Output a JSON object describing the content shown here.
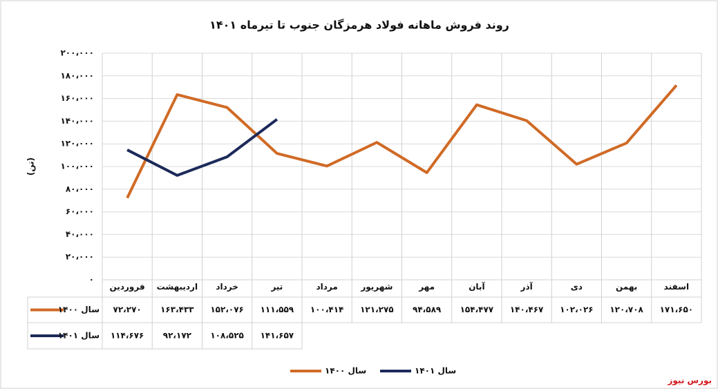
{
  "chart_data": {
    "type": "line",
    "title": "روند فروش ماهانه فولاد هرمزگان جنوب تا تیرماه ۱۴۰۱",
    "y_label": "(تن)",
    "source": "بورس نیوز",
    "categories": [
      "فروردین",
      "اردیبهشت",
      "خرداد",
      "تیر",
      "مرداد",
      "شهریور",
      "مهر",
      "آبان",
      "آذر",
      "دی",
      "بهمن",
      "اسفند"
    ],
    "series": [
      {
        "name": "سال ۱۴۰۰",
        "color": "#d06a25",
        "values": [
          72270,
          163433,
          152076,
          111559,
          100414,
          121275,
          94589,
          154477,
          140467,
          102026,
          120708,
          171650
        ],
        "value_labels": [
          "۷۲،۲۷۰",
          "۱۶۳،۴۳۳",
          "۱۵۲،۰۷۶",
          "۱۱۱،۵۵۹",
          "۱۰۰،۴۱۴",
          "۱۲۱،۲۷۵",
          "۹۴،۵۸۹",
          "۱۵۴،۴۷۷",
          "۱۴۰،۴۶۷",
          "۱۰۲،۰۲۶",
          "۱۲۰،۷۰۸",
          "۱۷۱،۶۵۰"
        ]
      },
      {
        "name": "سال ۱۴۰۱",
        "color": "#1c2a5a",
        "values": [
          114676,
          92172,
          108525,
          141657,
          null,
          null,
          null,
          null,
          null,
          null,
          null,
          null
        ],
        "value_labels": [
          "۱۱۴،۶۷۶",
          "۹۲،۱۷۲",
          "۱۰۸،۵۲۵",
          "۱۴۱،۶۵۷",
          null,
          null,
          null,
          null,
          null,
          null,
          null,
          null
        ]
      }
    ],
    "ylim": [
      0,
      200000
    ],
    "yticks": [
      {
        "value": 0,
        "label": "۰"
      },
      {
        "value": 20000,
        "label": "۲۰،۰۰۰"
      },
      {
        "value": 40000,
        "label": "۴۰،۰۰۰"
      },
      {
        "value": 60000,
        "label": "۶۰،۰۰۰"
      },
      {
        "value": 80000,
        "label": "۸۰،۰۰۰"
      },
      {
        "value": 100000,
        "label": "۱۰۰،۰۰۰"
      },
      {
        "value": 120000,
        "label": "۱۲۰،۰۰۰"
      },
      {
        "value": 140000,
        "label": "۱۴۰،۰۰۰"
      },
      {
        "value": 160000,
        "label": "۱۶۰،۰۰۰"
      },
      {
        "value": 180000,
        "label": "۱۸۰،۰۰۰"
      },
      {
        "value": 200000,
        "label": "۲۰۰،۰۰۰"
      }
    ],
    "grid": true
  }
}
